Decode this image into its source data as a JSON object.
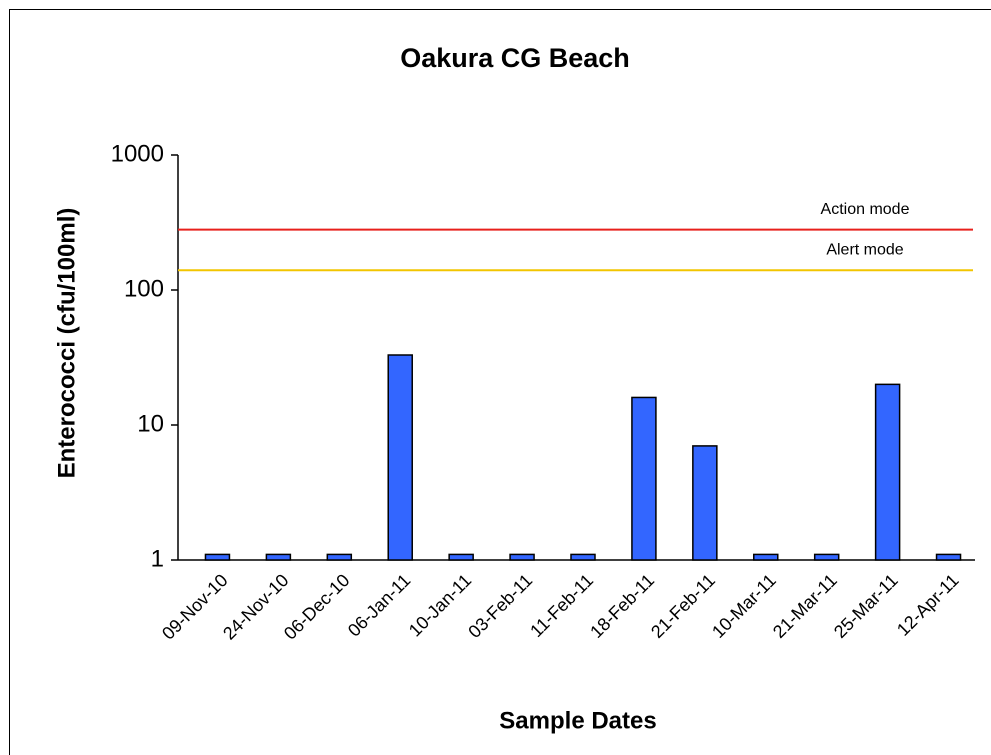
{
  "chart_data": {
    "type": "bar",
    "title": "Oakura CG Beach",
    "x_label": "Sample Dates",
    "y_label": "Enterococci (cfu/100ml)",
    "categories": [
      "09-Nov-10",
      "24-Nov-10",
      "06-Dec-10",
      "06-Jan-11",
      "10-Jan-11",
      "03-Feb-11",
      "11-Feb-11",
      "18-Feb-11",
      "21-Feb-11",
      "10-Mar-11",
      "21-Mar-11",
      "25-Mar-11",
      "12-Apr-11"
    ],
    "values": [
      1.1,
      1.1,
      1.1,
      33,
      1.1,
      1.1,
      1.1,
      16,
      7,
      1.1,
      1.1,
      20,
      1.1
    ],
    "color": "#3366ff",
    "log_scale": true,
    "ylim": [
      1,
      1000
    ],
    "yticks": [
      1,
      10,
      100,
      1000
    ],
    "reference_lines": [
      {
        "label": "Action mode",
        "value": 280,
        "color": "#e8201c"
      },
      {
        "label": "Alert mode",
        "value": 140,
        "color": "#f2c500"
      }
    ]
  }
}
